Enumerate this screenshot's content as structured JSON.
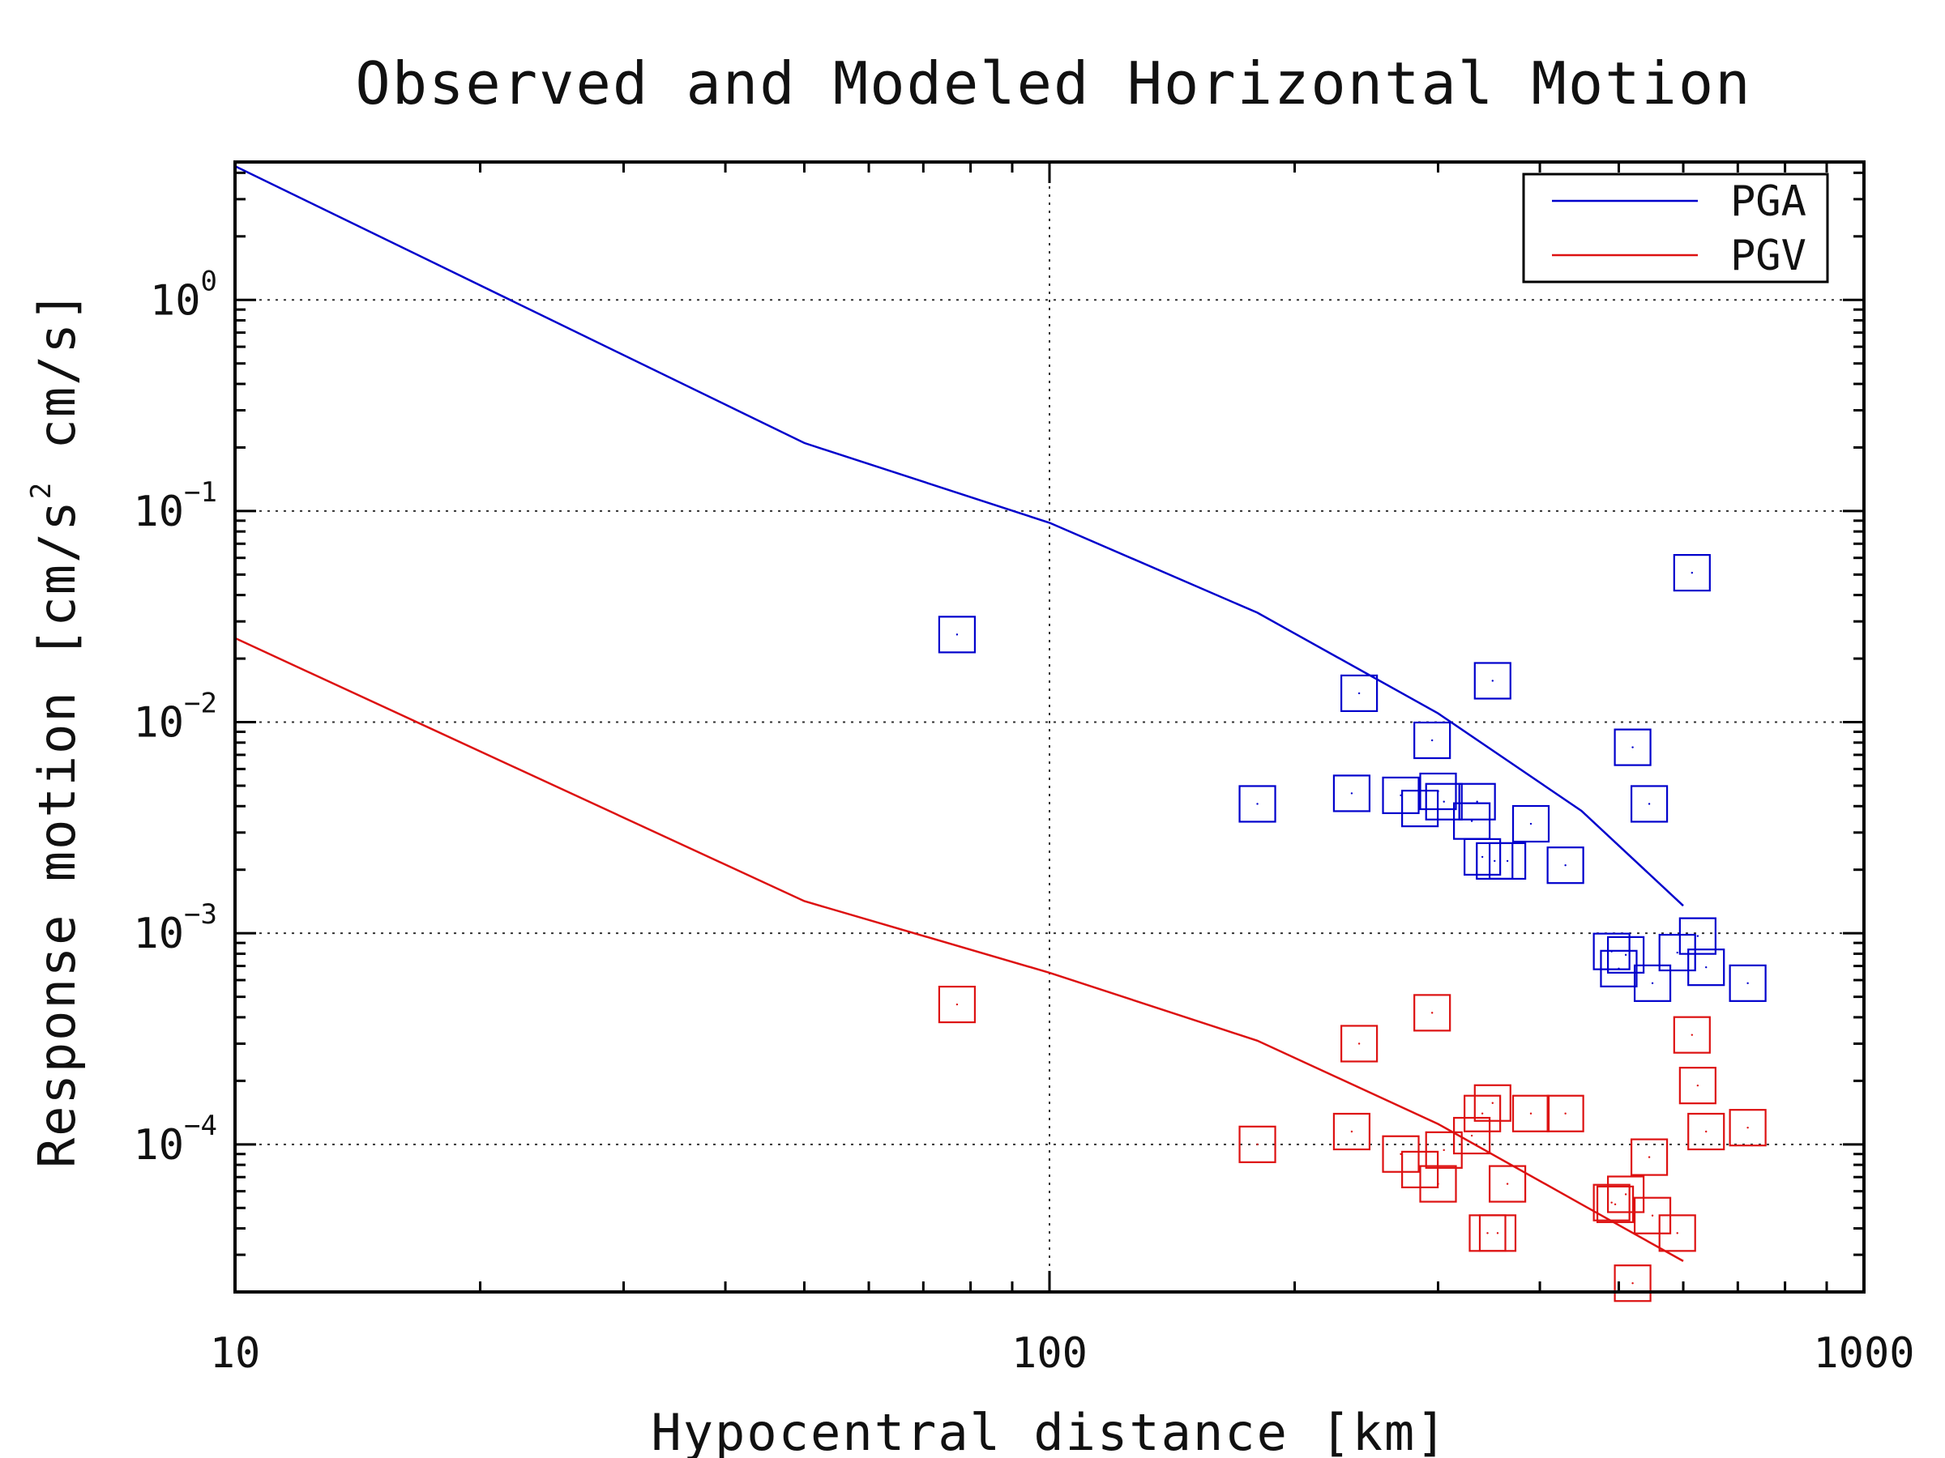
{
  "chart_data": {
    "type": "scatter",
    "title": "Observed and Modeled Horizontal Motion",
    "xlabel": "Hypocentral distance [km]",
    "ylabel_parts": [
      "Response motion  [cm/s",
      "2",
      "  cm/s]"
    ],
    "xscale": "log",
    "yscale": "log",
    "xlim": [
      10,
      1000
    ],
    "ylim": [
      2e-05,
      4.5
    ],
    "grid": true,
    "legend_position": "top-right",
    "x_ticks": [
      {
        "value": 10,
        "label": "10"
      },
      {
        "value": 100,
        "label": "100"
      },
      {
        "value": 1000,
        "label": "1000"
      }
    ],
    "y_ticks": [
      {
        "value": 1,
        "base": "10",
        "exp": "0"
      },
      {
        "value": 0.1,
        "base": "10",
        "exp": "−1"
      },
      {
        "value": 0.01,
        "base": "10",
        "exp": "−2"
      },
      {
        "value": 0.001,
        "base": "10",
        "exp": "−3"
      },
      {
        "value": 0.0001,
        "base": "10",
        "exp": "−4"
      }
    ],
    "lines": [
      {
        "name": "PGA",
        "color": "#0000cc",
        "points": [
          [
            10,
            4.3
          ],
          [
            50,
            0.21
          ],
          [
            100,
            0.088
          ],
          [
            180,
            0.033
          ],
          [
            300,
            0.011
          ],
          [
            450,
            0.0038
          ],
          [
            600,
            0.00135
          ]
        ]
      },
      {
        "name": "PGV",
        "color": "#dd1111",
        "points": [
          [
            10,
            0.025
          ],
          [
            50,
            0.00142
          ],
          [
            100,
            0.00065
          ],
          [
            180,
            0.00031
          ],
          [
            300,
            0.000125
          ],
          [
            450,
            5.2e-05
          ],
          [
            600,
            2.8e-05
          ]
        ]
      }
    ],
    "observed": [
      {
        "name": "PGA observed",
        "color": "#0000cc",
        "points": [
          [
            77,
            0.026
          ],
          [
            180,
            0.0041
          ],
          [
            235,
            0.0046
          ],
          [
            240,
            0.0137
          ],
          [
            270,
            0.0045
          ],
          [
            285,
            0.0039
          ],
          [
            295,
            0.0082
          ],
          [
            300,
            0.0047
          ],
          [
            305,
            0.0042
          ],
          [
            330,
            0.0034
          ],
          [
            335,
            0.0042
          ],
          [
            340,
            0.0023
          ],
          [
            350,
            0.0157
          ],
          [
            352,
            0.0022
          ],
          [
            365,
            0.0022
          ],
          [
            390,
            0.0033
          ],
          [
            430,
            0.0021
          ],
          [
            490,
            0.00082
          ],
          [
            500,
            0.00068
          ],
          [
            510,
            0.00079
          ],
          [
            520,
            0.0076
          ],
          [
            545,
            0.0041
          ],
          [
            550,
            0.00058
          ],
          [
            590,
            0.00081
          ],
          [
            615,
            0.051
          ],
          [
            625,
            0.00097
          ],
          [
            640,
            0.00069
          ],
          [
            720,
            0.00058
          ]
        ]
      },
      {
        "name": "PGV observed",
        "color": "#dd1111",
        "points": [
          [
            77,
            0.00046
          ],
          [
            180,
            0.0001
          ],
          [
            235,
            0.000115
          ],
          [
            240,
            0.0003
          ],
          [
            270,
            9e-05
          ],
          [
            285,
            7.6e-05
          ],
          [
            295,
            0.00042
          ],
          [
            300,
            6.5e-05
          ],
          [
            305,
            9.4e-05
          ],
          [
            330,
            0.00011
          ],
          [
            340,
            0.00014
          ],
          [
            345,
            3.8e-05
          ],
          [
            350,
            0.000157
          ],
          [
            355,
            3.8e-05
          ],
          [
            365,
            6.5e-05
          ],
          [
            390,
            0.00014
          ],
          [
            430,
            0.00014
          ],
          [
            490,
            5.3e-05
          ],
          [
            495,
            5.2e-05
          ],
          [
            510,
            5.8e-05
          ],
          [
            520,
            2.2e-05
          ],
          [
            545,
            8.7e-05
          ],
          [
            550,
            4.6e-05
          ],
          [
            590,
            3.8e-05
          ],
          [
            615,
            0.00033
          ],
          [
            625,
            0.00019
          ],
          [
            640,
            0.000115
          ],
          [
            720,
            0.00012
          ]
        ]
      }
    ],
    "legend": [
      {
        "label": "PGA",
        "color": "#0000cc"
      },
      {
        "label": "PGV",
        "color": "#dd1111"
      }
    ]
  }
}
